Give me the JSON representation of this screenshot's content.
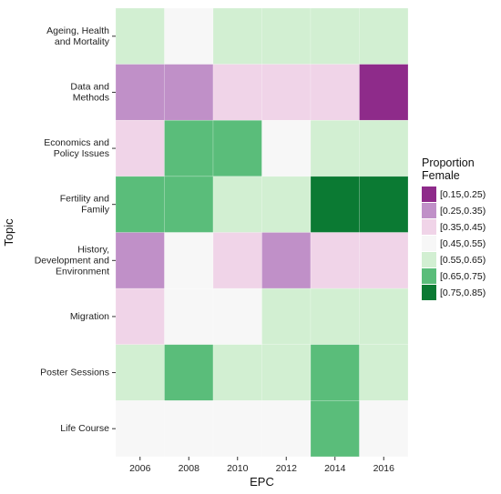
{
  "chart_data": {
    "type": "heatmap",
    "xlabel": "EPC",
    "ylabel": "Topic",
    "x": [
      "2006",
      "2008",
      "2010",
      "2012",
      "2014",
      "2016"
    ],
    "y": [
      "Ageing, Health\nand Mortality",
      "Data and\nMethods",
      "Economics and\nPolicy Issues",
      "Fertility and\nFamily",
      "History,\nDevelopment and\nEnvironment",
      "Migration",
      "Poster Sessions",
      "Life Course"
    ],
    "bins": [
      "[0.15,0.25)",
      "[0.25,0.35)",
      "[0.35,0.45)",
      "[0.45,0.55)",
      "[0.55,0.65)",
      "[0.65,0.75)",
      "[0.75,0.85)"
    ],
    "bin_colors": [
      "#8e2b8a",
      "#c090c8",
      "#f0d4e8",
      "#f7f7f7",
      "#d2efd2",
      "#5abd7a",
      "#0b7a33"
    ],
    "cells": [
      [
        4,
        3,
        4,
        4,
        4,
        4
      ],
      [
        1,
        1,
        2,
        2,
        2,
        0
      ],
      [
        2,
        5,
        5,
        3,
        4,
        4
      ],
      [
        5,
        5,
        4,
        4,
        6,
        6
      ],
      [
        1,
        3,
        2,
        1,
        2,
        2
      ],
      [
        2,
        3,
        3,
        4,
        4,
        4
      ],
      [
        4,
        5,
        4,
        4,
        5,
        4
      ],
      [
        3,
        3,
        3,
        3,
        5,
        3
      ]
    ],
    "legend": {
      "title": "Proportion\nFemale",
      "position": "right"
    },
    "grid": false
  }
}
